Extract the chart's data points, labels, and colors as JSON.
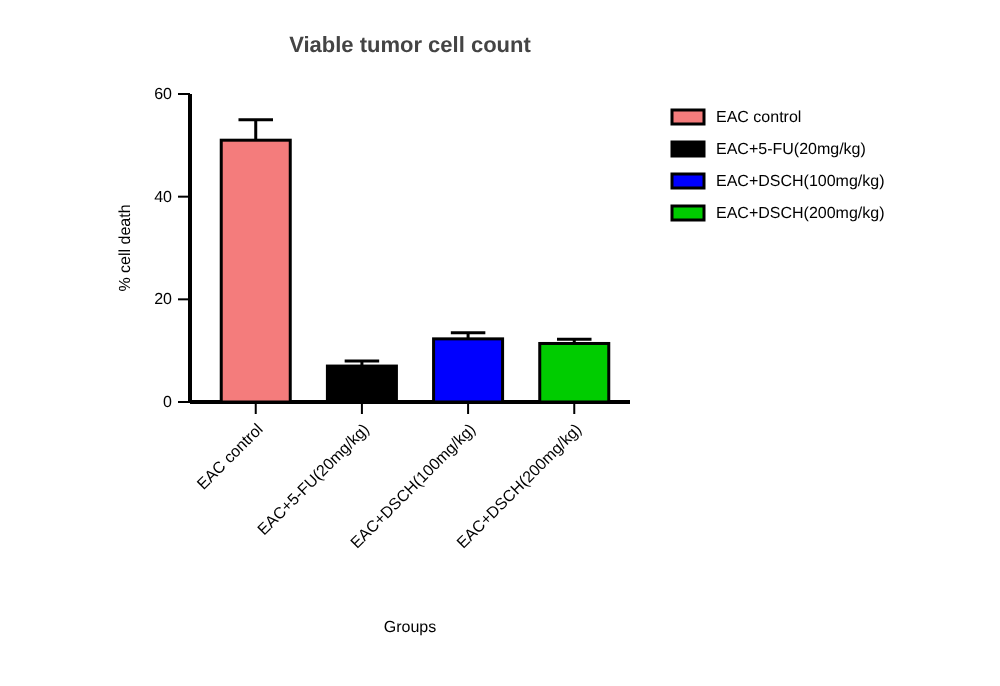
{
  "chart_data": {
    "type": "bar",
    "title": "Viable tumor cell count",
    "xlabel": "Groups",
    "ylabel": "% cell death",
    "categories": [
      "EAC control",
      "EAC+5-FU(20mg/kg)",
      "EAC+DSCH(100mg/kg)",
      "EAC+DSCH(200mg/kg)"
    ],
    "series": [
      {
        "name": "EAC control",
        "color": "#f47c7c",
        "values": [
          51,
          null,
          null,
          null
        ],
        "errors": [
          4,
          null,
          null,
          null
        ]
      },
      {
        "name": "EAC+5-FU(20mg/kg)",
        "color": "#000000",
        "values": [
          null,
          7,
          null,
          null
        ],
        "errors": [
          null,
          1,
          null,
          null
        ]
      },
      {
        "name": "EAC+DSCH(100mg/kg)",
        "color": "#0000ff",
        "values": [
          null,
          null,
          12.3,
          null
        ],
        "errors": [
          null,
          null,
          1.2,
          null
        ]
      },
      {
        "name": "EAC+DSCH(200mg/kg)",
        "color": "#00cc00",
        "values": [
          null,
          null,
          null,
          11.4
        ],
        "errors": [
          null,
          null,
          null,
          0.8
        ]
      }
    ],
    "ylim": [
      0,
      60
    ],
    "yticks": [
      0,
      20,
      40,
      60
    ],
    "legend": "right"
  }
}
